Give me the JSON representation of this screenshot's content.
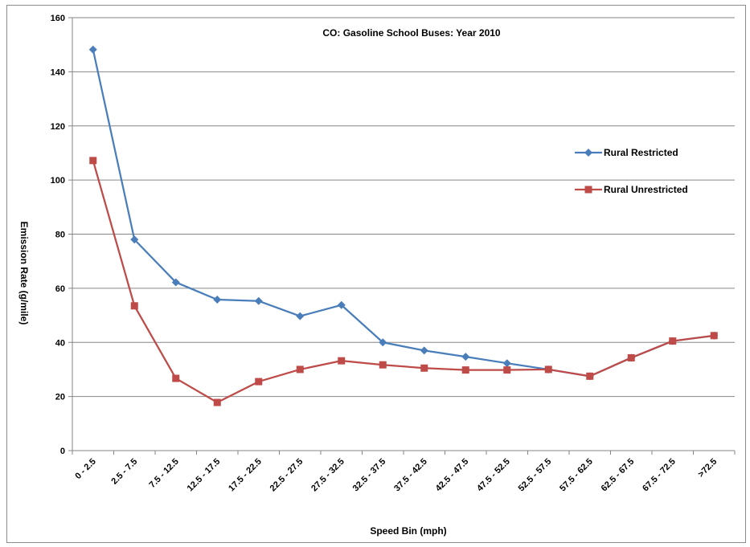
{
  "chart_data": {
    "type": "line",
    "title": "CO: Gasoline School Buses: Year 2010",
    "xlabel": "Speed Bin (mph)",
    "ylabel": "Emission Rate (g/mile)",
    "ylim": [
      0,
      160
    ],
    "yticks": [
      0,
      20,
      40,
      60,
      80,
      100,
      120,
      140,
      160
    ],
    "grid": true,
    "legend_position": "right",
    "categories": [
      "0 - 2.5",
      "2.5 - 7.5",
      "7.5 - 12.5",
      "12.5 - 17.5",
      "17.5 - 22.5",
      "22.5 - 27.5",
      "27.5 - 32.5",
      "32.5 - 37.5",
      "37.5 - 42.5",
      "42.5 - 47.5",
      "47.5 - 52.5",
      "52.5 - 57.5",
      "57.5 - 62.5",
      "62.5 - 67.5",
      "67.5 - 72.5",
      ">72.5"
    ],
    "series": [
      {
        "name": "Rural Restricted",
        "color": "#4a7ebb",
        "marker": "diamond",
        "values": [
          148.2,
          78.0,
          62.2,
          55.8,
          55.3,
          49.7,
          53.8,
          40.0,
          37.0,
          34.7,
          32.3,
          30.0,
          27.5,
          34.3,
          40.5,
          42.5
        ]
      },
      {
        "name": "Rural Unrestricted",
        "color": "#be4b48",
        "marker": "square",
        "values": [
          107.2,
          53.5,
          26.7,
          17.8,
          25.5,
          30.0,
          33.2,
          31.7,
          30.5,
          29.8,
          29.8,
          30.0,
          27.5,
          34.3,
          40.5,
          42.5
        ]
      }
    ]
  }
}
